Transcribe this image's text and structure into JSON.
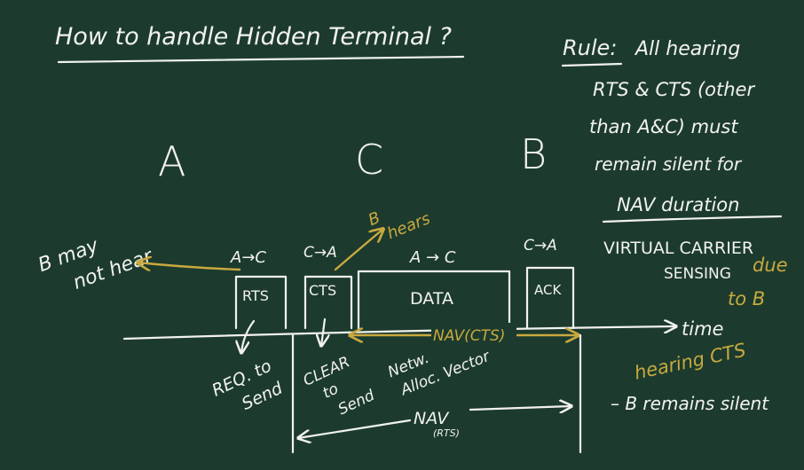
{
  "title": "How to handle Hidden Terminal ?",
  "rule": {
    "heading": "Rule:",
    "lines": [
      "All hearing",
      "RTS & CTS (other",
      "than A&C) must",
      "remain silent for",
      "NAV duration"
    ]
  },
  "nodes": {
    "a": "A",
    "c": "C",
    "b": "B"
  },
  "b_may_not_hear": [
    "B may",
    "not hear"
  ],
  "b_hears": [
    "B",
    "hears"
  ],
  "frames": {
    "rts": {
      "direction": "A→C",
      "label": "RTS",
      "meaning": [
        "REQ. to",
        "Send"
      ]
    },
    "cts": {
      "direction": "C→A",
      "label": "CTS",
      "meaning": [
        "CLEAR",
        "to",
        "Send"
      ]
    },
    "data": {
      "direction": "A → C",
      "label": "DATA"
    },
    "ack": {
      "direction": "C→A",
      "label": "ACK"
    }
  },
  "time_label": "time",
  "nav_cts": "NAV(CTS)",
  "nav_expansion": [
    "Netw.",
    "Alloc. Vector"
  ],
  "nav_rts": {
    "label": "NAV",
    "sub": "(RTS)"
  },
  "virtual_carrier": {
    "title_lines": [
      "VIRTUAL CARRIER",
      "SENSING"
    ],
    "due_lines": [
      "due",
      "to B"
    ],
    "hearing": "hearing CTS",
    "result": "– B remains silent"
  },
  "colors": {
    "board": "#1c3b2e",
    "chalk": "#f2f2ee",
    "accent": "#c9a93f"
  }
}
